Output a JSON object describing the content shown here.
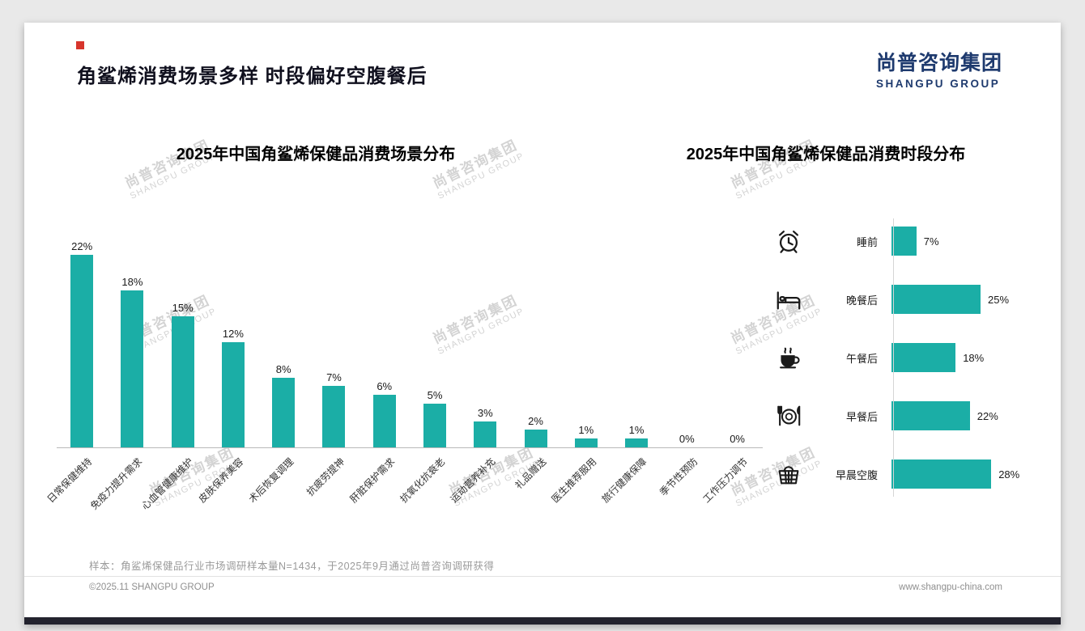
{
  "page": {
    "title": "角鲨烯消费场景多样 时段偏好空腹餐后",
    "logo": {
      "cn": "尚普咨询集团",
      "en": "SHANGPU GROUP"
    },
    "watermark": {
      "cn": "尚普咨询集团",
      "en": "SHANGPU GROUP"
    },
    "footnote": "样本：角鲨烯保健品行业市场调研样本量N=1434，于2025年9月通过尚普咨询调研获得",
    "footer": {
      "left": "©2025.11 SHANGPU GROUP",
      "right": "www.shangpu-china.com"
    },
    "colors": {
      "bar": "#1BAEA6",
      "brand_navy": "#1E3A6E",
      "accent_red": "#D7352C"
    }
  },
  "chart_data": [
    {
      "type": "bar",
      "orientation": "vertical",
      "title": "2025年中国角鲨烯保健品消费场景分布",
      "categories": [
        "日常保健维持",
        "免疫力提升需求",
        "心血管健康维护",
        "皮肤保养美容",
        "术后恢复调理",
        "抗疲劳提神",
        "肝脏保护需求",
        "抗氧化抗衰老",
        "运动营养补充",
        "礼品赠送",
        "医生推荐服用",
        "旅行健康保障",
        "季节性预防",
        "工作压力调节"
      ],
      "values": [
        22,
        18,
        15,
        12,
        8,
        7,
        6,
        5,
        3,
        2,
        1,
        1,
        0,
        0
      ],
      "unit": "%",
      "ylim": [
        0,
        25
      ],
      "bar_color": "#1BAEA6",
      "data_labels": true,
      "grid": false
    },
    {
      "type": "bar",
      "orientation": "horizontal",
      "title": "2025年中国角鲨烯保健品消费时段分布",
      "categories": [
        "睡前",
        "晚餐后",
        "午餐后",
        "早餐后",
        "早晨空腹"
      ],
      "values": [
        7,
        25,
        18,
        22,
        28
      ],
      "icons": [
        "alarm-clock-icon",
        "bed-icon",
        "coffee-cup-icon",
        "plate-cutlery-icon",
        "basket-icon"
      ],
      "unit": "%",
      "xlim": [
        0,
        30
      ],
      "bar_color": "#1BAEA6",
      "data_labels": true,
      "grid": false
    }
  ]
}
